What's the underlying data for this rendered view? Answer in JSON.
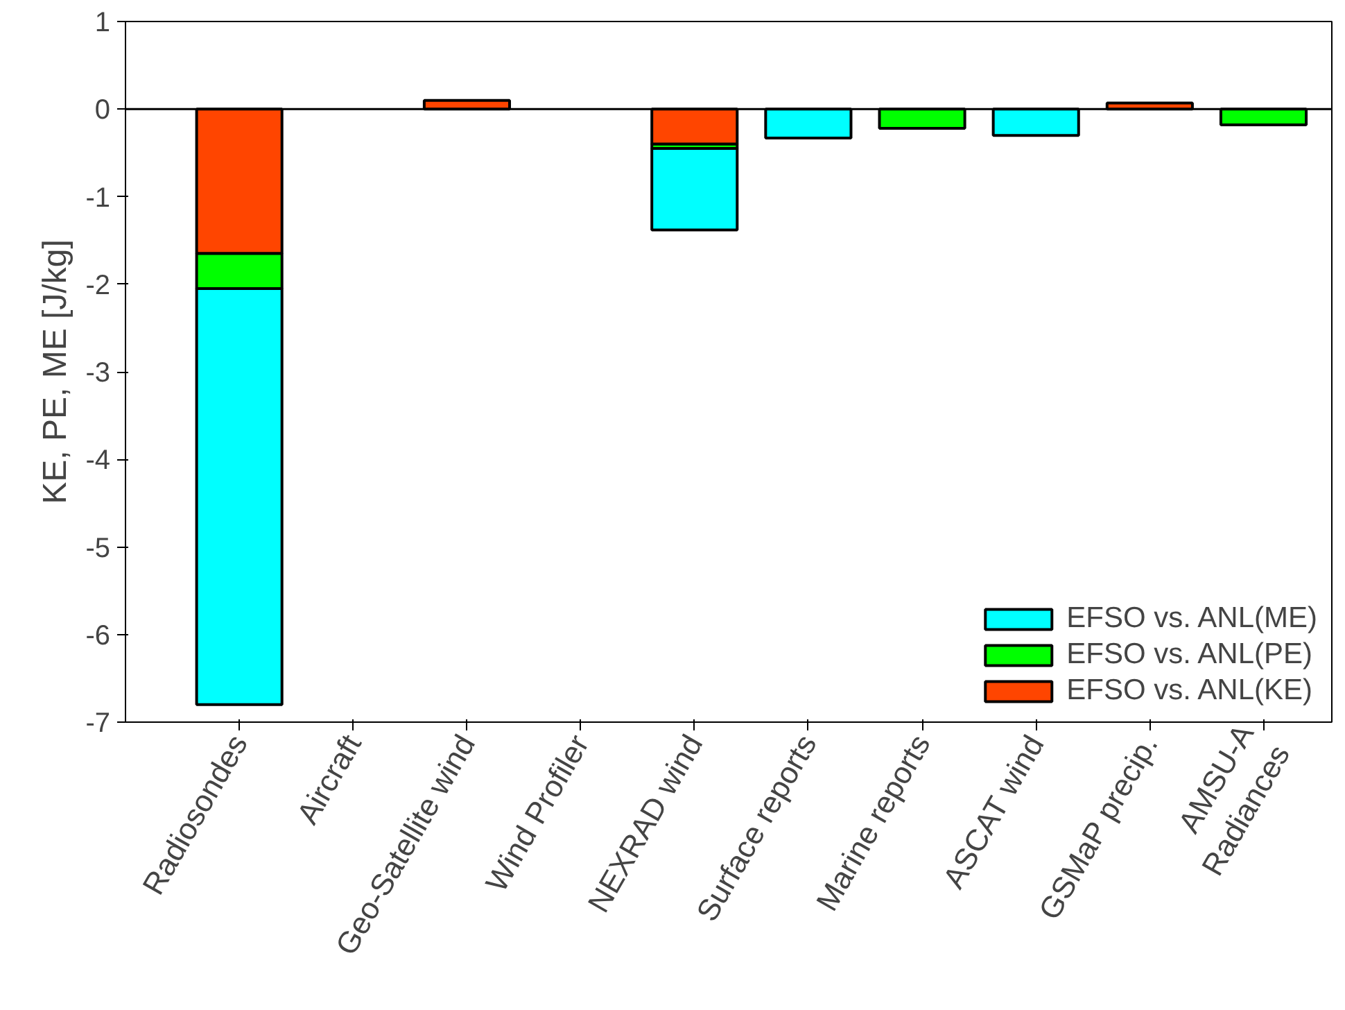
{
  "chart_data": {
    "type": "bar",
    "stacked": true,
    "ylabel": "KE, PE, ME [J/kg]",
    "categories": [
      "Radiosondes",
      "Aircraft",
      "Geo-Satellite wind",
      "Wind Profiler",
      "NEXRAD wind",
      "Surface reports",
      "Marine reports",
      "ASCAT wind",
      "GSMaP precip.",
      "AMSU-A\nRadiances"
    ],
    "series": [
      {
        "name": "EFSO vs. ANL(KE)",
        "color": "#ff4500",
        "values": [
          -1.65,
          null,
          0.1,
          null,
          -0.4,
          null,
          null,
          null,
          0.07,
          null
        ]
      },
      {
        "name": "EFSO vs. ANL(PE)",
        "color": "#00ff00",
        "values": [
          -0.4,
          null,
          null,
          null,
          -0.05,
          null,
          -0.22,
          null,
          null,
          -0.18
        ]
      },
      {
        "name": "EFSO vs. ANL(ME)",
        "color": "#00ffff",
        "values": [
          -4.75,
          null,
          null,
          null,
          -0.93,
          -0.33,
          null,
          -0.3,
          null,
          null
        ]
      }
    ],
    "ref_lines": [
      {
        "axis": "y",
        "value": 0,
        "color": "#000000"
      }
    ],
    "ylim": [
      -7,
      1
    ],
    "yticks": [
      -7,
      -6,
      -5,
      -4,
      -3,
      -2,
      -1,
      0,
      1
    ],
    "grid": false,
    "legend": "bottom right"
  }
}
